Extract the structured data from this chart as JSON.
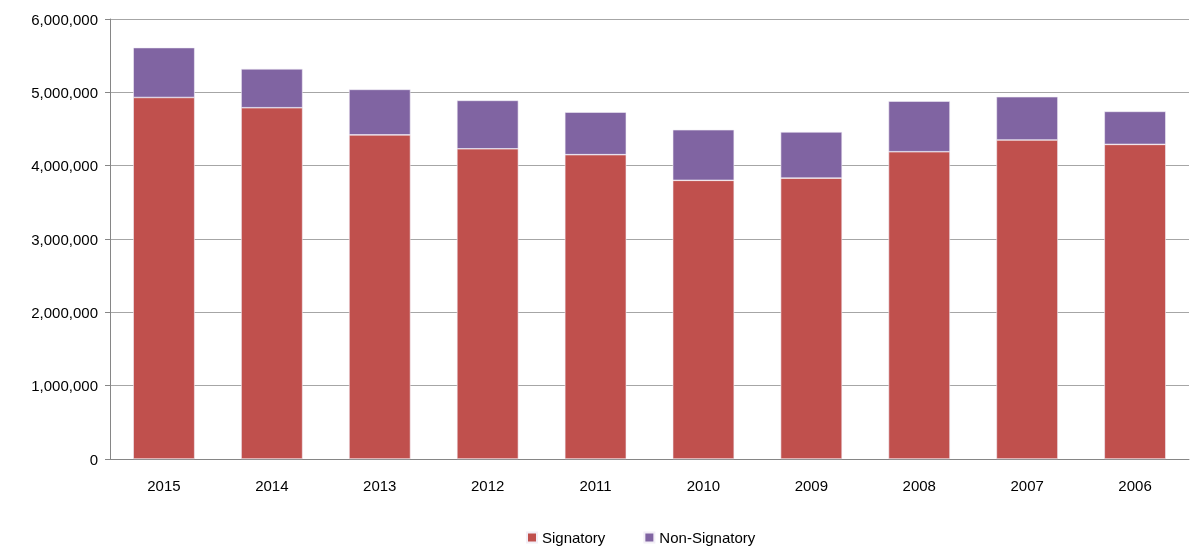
{
  "chart_data": {
    "type": "bar",
    "stacked": true,
    "categories": [
      "2015",
      "2014",
      "2013",
      "2012",
      "2011",
      "2010",
      "2009",
      "2008",
      "2007",
      "2006"
    ],
    "series": [
      {
        "name": "Signatory",
        "color": "#c0504d",
        "values": [
          4930000,
          4790000,
          4420000,
          4230000,
          4150000,
          3800000,
          3830000,
          4190000,
          4350000,
          4290000
        ]
      },
      {
        "name": "Non-Signatory",
        "color": "#8064a2",
        "values": [
          680000,
          530000,
          620000,
          660000,
          580000,
          690000,
          630000,
          690000,
          590000,
          450000
        ]
      }
    ],
    "ylim": [
      0,
      6000000
    ],
    "yticks": [
      0,
      {
        "value": 1000000,
        "label": "1,000,000"
      },
      {
        "value": 2000000,
        "label": "2,000,000"
      },
      {
        "value": 3000000,
        "label": "3,000,000"
      },
      {
        "value": 4000000,
        "label": "4,000,000"
      },
      {
        "value": 5000000,
        "label": "5,000,000"
      },
      {
        "value": 6000000,
        "label": "6,000,000"
      }
    ],
    "grid": "y",
    "legend": "bottom"
  }
}
